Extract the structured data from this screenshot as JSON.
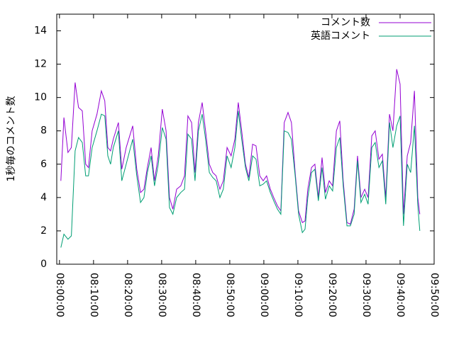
{
  "chart_data": {
    "type": "line",
    "ylabel": "1秒毎のコメント数",
    "x": [
      480.4,
      481.3,
      482.5,
      483.5,
      484.6,
      485.6,
      486.7,
      487.7,
      488.5,
      489.6,
      491.0,
      492.3,
      493.3,
      494.2,
      495.0,
      495.8,
      497.3,
      498.3,
      499.6,
      501.5,
      502.7,
      503.8,
      504.8,
      505.8,
      506.9,
      507.9,
      509.0,
      510.2,
      511.3,
      512.3,
      513.3,
      514.4,
      515.6,
      516.7,
      517.7,
      518.8,
      519.8,
      520.8,
      521.9,
      522.9,
      524.0,
      525.0,
      526.0,
      527.1,
      528.1,
      529.2,
      530.4,
      531.5,
      532.5,
      533.5,
      534.6,
      535.6,
      536.7,
      537.7,
      538.8,
      539.8,
      540.8,
      541.9,
      542.9,
      544.0,
      545.0,
      546.0,
      547.1,
      548.1,
      549.2,
      550.2,
      551.3,
      552.1,
      552.9,
      554.0,
      555.0,
      556.0,
      557.1,
      558.1,
      559.2,
      560.2,
      561.3,
      562.3,
      563.3,
      564.4,
      565.4,
      566.5,
      567.5,
      568.5,
      569.6,
      570.6,
      571.7,
      572.7,
      573.8,
      574.8,
      575.8,
      576.9,
      577.9,
      579.0,
      580.0,
      581.0,
      582.1,
      583.1,
      584.2,
      585.2,
      585.8
    ],
    "series": [
      {
        "name": "コメント数",
        "color": "#9400d3",
        "values": [
          5,
          8.8,
          6.7,
          7,
          10.9,
          9.4,
          9.2,
          6,
          5.8,
          8,
          9,
          10.4,
          9.8,
          7,
          6.8,
          7.5,
          8.5,
          5.7,
          7,
          8.3,
          5.7,
          4.3,
          4.5,
          5.8,
          7,
          5,
          6.5,
          9.3,
          8,
          4,
          3.3,
          4.5,
          4.7,
          5.3,
          8.9,
          8.5,
          5.5,
          8.5,
          9.7,
          8,
          6,
          5.5,
          5.3,
          4.5,
          5,
          7,
          6.5,
          7.5,
          9.7,
          8,
          6,
          5.2,
          7.2,
          7.1,
          5.3,
          5,
          5.3,
          4.5,
          4,
          3.5,
          3.2,
          8.5,
          9.1,
          8.5,
          5.5,
          3.2,
          2.5,
          2.6,
          4.5,
          5.8,
          6,
          4,
          6.4,
          4.3,
          5,
          4.7,
          8,
          8.6,
          5,
          2.5,
          2.4,
          3.3,
          6.5,
          4,
          4.5,
          4,
          7.7,
          8,
          6.3,
          6.6,
          4,
          9,
          8,
          11.7,
          10.8,
          3,
          6.5,
          7.3,
          10.4,
          4,
          3
        ]
      },
      {
        "name": "英語コメント",
        "color": "#009e73",
        "values": [
          1,
          1.8,
          1.5,
          1.7,
          6.8,
          7.6,
          7.3,
          5.3,
          5.3,
          7,
          8,
          9,
          8.9,
          6.5,
          6,
          7,
          8,
          5,
          6,
          7.5,
          5.3,
          3.7,
          4,
          5.5,
          6.5,
          4.7,
          6,
          8.2,
          7.5,
          3.4,
          3,
          4,
          4.3,
          4.5,
          7.8,
          7.5,
          5,
          8,
          9,
          7.5,
          5.5,
          5.2,
          5,
          4,
          4.5,
          6.5,
          5.8,
          7,
          9.2,
          7.5,
          5.8,
          5,
          6.5,
          6.3,
          4.7,
          4.8,
          5,
          4.3,
          3.8,
          3.3,
          3,
          8,
          7.9,
          7.5,
          5.3,
          3,
          1.9,
          2.1,
          4,
          5.5,
          5.7,
          3.8,
          5.8,
          3.9,
          4.7,
          4.4,
          7,
          7.6,
          4.7,
          2.3,
          2.3,
          3,
          6.2,
          3.7,
          4.2,
          3.6,
          7,
          7.3,
          5.8,
          6.2,
          3.6,
          8.5,
          7,
          8.3,
          8.9,
          2.3,
          6,
          5.5,
          8.3,
          3.5,
          2
        ]
      }
    ],
    "xlim": [
      479.2,
      590
    ],
    "xticks": [
      {
        "value": 480,
        "label": "08:00:00"
      },
      {
        "value": 490,
        "label": "08:10:00"
      },
      {
        "value": 500,
        "label": "08:20:00"
      },
      {
        "value": 510,
        "label": "08:30:00"
      },
      {
        "value": 520,
        "label": "08:40:00"
      },
      {
        "value": 530,
        "label": "08:50:00"
      },
      {
        "value": 540,
        "label": "09:00:00"
      },
      {
        "value": 550,
        "label": "09:10:00"
      },
      {
        "value": 560,
        "label": "09:20:00"
      },
      {
        "value": 570,
        "label": "09:30:00"
      },
      {
        "value": 580,
        "label": "09:40:00"
      },
      {
        "value": 590,
        "label": "09:50:00"
      }
    ],
    "ylim": [
      0,
      15
    ],
    "yticks": [
      0,
      2,
      4,
      6,
      8,
      10,
      12,
      14
    ],
    "legend": "top-right"
  }
}
